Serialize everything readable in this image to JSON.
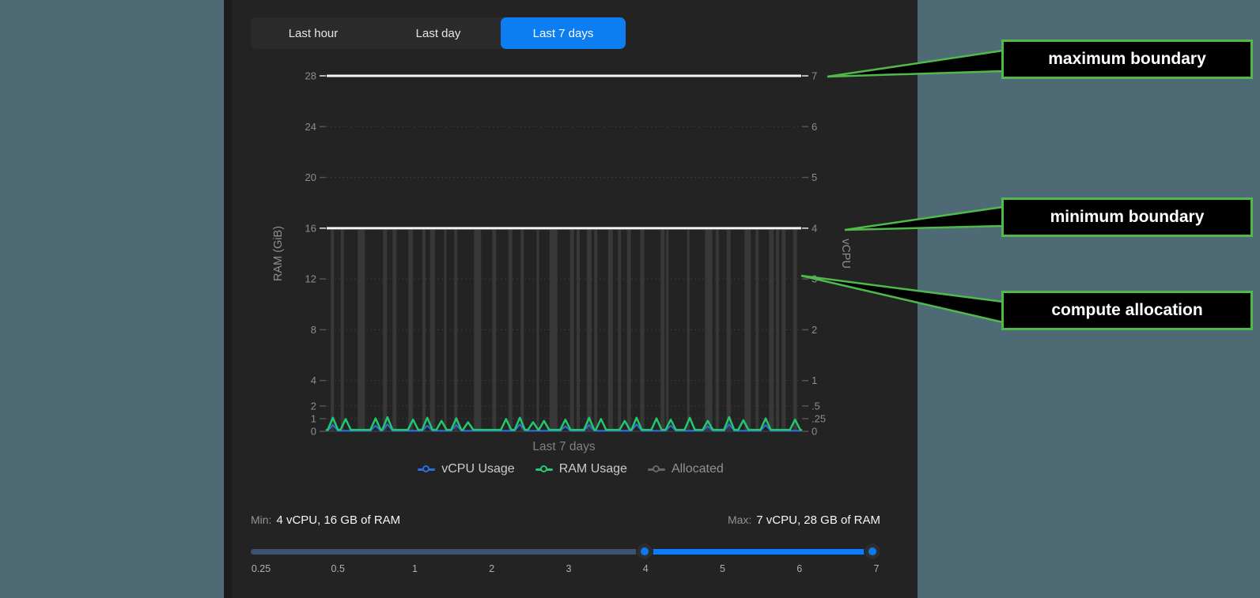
{
  "colors": {
    "page_bg": "#4e6a75",
    "panel_bg": "#232323",
    "accent_blue": "#0d7df2",
    "slider_blue": "#0a7cff",
    "slider_inactive": "#3d5270",
    "ram_green": "#24c76f",
    "vcpu_blue": "#2a6fe0",
    "allocated_gray": "#383838",
    "boundary_white": "#f5f5f5",
    "annotation_green": "#50b94c"
  },
  "tabs": {
    "items": [
      {
        "label": "Last hour",
        "active": false
      },
      {
        "label": "Last day",
        "active": false
      },
      {
        "label": "Last 7 days",
        "active": true
      }
    ]
  },
  "chart_data": {
    "type": "line",
    "title": "",
    "xlabel": "Last 7 days",
    "y_axis_left": {
      "title": "RAM (GiB)",
      "range": [
        0,
        28
      ],
      "ticks": [
        "28",
        "24",
        "20",
        "16",
        "12",
        "8",
        "4",
        "2",
        "1",
        "0"
      ],
      "tick_values": [
        28,
        24,
        20,
        16,
        12,
        8,
        4,
        2,
        1,
        0
      ]
    },
    "y_axis_right": {
      "title": "vCPU",
      "range": [
        0,
        7
      ],
      "ticks": [
        "7",
        "6",
        "5",
        "4",
        "3",
        "2",
        "1",
        ".5",
        ".25",
        "0"
      ],
      "tick_values_gib": [
        28,
        24,
        20,
        16,
        12,
        8,
        4,
        2,
        1,
        0
      ]
    },
    "boundary_lines": [
      {
        "name": "maximum boundary",
        "ram_gib": 28,
        "vcpu": 7
      },
      {
        "name": "minimum boundary",
        "ram_gib": 16,
        "vcpu": 4
      }
    ],
    "legend": [
      {
        "label": "vCPU Usage",
        "color": "#2a6fe0",
        "dim": false
      },
      {
        "label": "RAM Usage",
        "color": "#24c76f",
        "dim": false
      },
      {
        "label": "Allocated",
        "color": "#666666",
        "dim": true
      }
    ],
    "series": [
      {
        "name": "Allocated",
        "render": "bars",
        "color": "#383838",
        "top_gib": 16,
        "bars": [
          {
            "x": 0.012,
            "w": 4
          },
          {
            "x": 0.033,
            "w": 4
          },
          {
            "x": 0.073,
            "w": 9
          },
          {
            "x": 0.123,
            "w": 5
          },
          {
            "x": 0.143,
            "w": 5
          },
          {
            "x": 0.177,
            "w": 6
          },
          {
            "x": 0.205,
            "w": 4
          },
          {
            "x": 0.223,
            "w": 6
          },
          {
            "x": 0.25,
            "w": 3
          },
          {
            "x": 0.272,
            "w": 4
          },
          {
            "x": 0.318,
            "w": 9
          },
          {
            "x": 0.353,
            "w": 5
          },
          {
            "x": 0.387,
            "w": 5
          },
          {
            "x": 0.412,
            "w": 4
          },
          {
            "x": 0.445,
            "w": 3
          },
          {
            "x": 0.478,
            "w": 10
          },
          {
            "x": 0.517,
            "w": 5
          },
          {
            "x": 0.53,
            "w": 4
          },
          {
            "x": 0.553,
            "w": 6
          },
          {
            "x": 0.567,
            "w": 4
          },
          {
            "x": 0.598,
            "w": 6
          },
          {
            "x": 0.617,
            "w": 4
          },
          {
            "x": 0.637,
            "w": 5
          },
          {
            "x": 0.665,
            "w": 5
          },
          {
            "x": 0.708,
            "w": 5
          },
          {
            "x": 0.718,
            "w": 3
          },
          {
            "x": 0.762,
            "w": 3
          },
          {
            "x": 0.805,
            "w": 9
          },
          {
            "x": 0.823,
            "w": 4
          },
          {
            "x": 0.847,
            "w": 5
          },
          {
            "x": 0.887,
            "w": 8
          },
          {
            "x": 0.907,
            "w": 4
          },
          {
            "x": 0.937,
            "w": 6
          },
          {
            "x": 0.95,
            "w": 4
          },
          {
            "x": 0.963,
            "w": 5
          },
          {
            "x": 0.987,
            "w": 5
          }
        ]
      },
      {
        "name": "vCPU Usage",
        "render": "line",
        "color": "#2a6fe0",
        "baseline_gib": 0.05,
        "width": 2,
        "peaks": [
          {
            "x": 0.013,
            "h": 0.45
          },
          {
            "x": 0.103,
            "h": 0.4
          },
          {
            "x": 0.128,
            "h": 0.5
          },
          {
            "x": 0.212,
            "h": 0.4
          },
          {
            "x": 0.273,
            "h": 0.45
          },
          {
            "x": 0.407,
            "h": 0.5
          },
          {
            "x": 0.503,
            "h": 0.35
          },
          {
            "x": 0.553,
            "h": 0.45
          },
          {
            "x": 0.653,
            "h": 0.5
          },
          {
            "x": 0.725,
            "h": 0.4
          },
          {
            "x": 0.803,
            "h": 0.35
          },
          {
            "x": 0.848,
            "h": 0.5
          },
          {
            "x": 0.925,
            "h": 0.45
          }
        ]
      },
      {
        "name": "RAM Usage",
        "render": "line",
        "color": "#24c76f",
        "baseline_gib": 0.12,
        "width": 2.5,
        "peaks": [
          {
            "x": 0.013,
            "h": 0.95
          },
          {
            "x": 0.04,
            "h": 0.85
          },
          {
            "x": 0.103,
            "h": 0.9
          },
          {
            "x": 0.128,
            "h": 1.0
          },
          {
            "x": 0.182,
            "h": 0.8
          },
          {
            "x": 0.212,
            "h": 0.95
          },
          {
            "x": 0.242,
            "h": 0.7
          },
          {
            "x": 0.273,
            "h": 0.9
          },
          {
            "x": 0.298,
            "h": 0.6
          },
          {
            "x": 0.378,
            "h": 0.85
          },
          {
            "x": 0.407,
            "h": 0.95
          },
          {
            "x": 0.435,
            "h": 0.6
          },
          {
            "x": 0.458,
            "h": 0.7
          },
          {
            "x": 0.503,
            "h": 0.8
          },
          {
            "x": 0.553,
            "h": 0.95
          },
          {
            "x": 0.578,
            "h": 0.85
          },
          {
            "x": 0.628,
            "h": 0.7
          },
          {
            "x": 0.653,
            "h": 0.95
          },
          {
            "x": 0.695,
            "h": 0.9
          },
          {
            "x": 0.725,
            "h": 0.8
          },
          {
            "x": 0.765,
            "h": 0.95
          },
          {
            "x": 0.803,
            "h": 0.7
          },
          {
            "x": 0.848,
            "h": 1.0
          },
          {
            "x": 0.878,
            "h": 0.75
          },
          {
            "x": 0.925,
            "h": 0.9
          },
          {
            "x": 0.987,
            "h": 0.8
          }
        ]
      }
    ]
  },
  "limits": {
    "min_label": "Min:",
    "min_value": "4 vCPU, 16 GB of RAM",
    "max_label": "Max:",
    "max_value": "7 vCPU, 28 GB of RAM"
  },
  "slider": {
    "ticks": [
      "0.25",
      "0.5",
      "1",
      "2",
      "3",
      "4",
      "5",
      "6",
      "7"
    ],
    "min_value": "4",
    "max_value": "7"
  },
  "annotations": [
    {
      "label": "maximum boundary"
    },
    {
      "label": "minimum boundary"
    },
    {
      "label": "compute allocation"
    }
  ]
}
